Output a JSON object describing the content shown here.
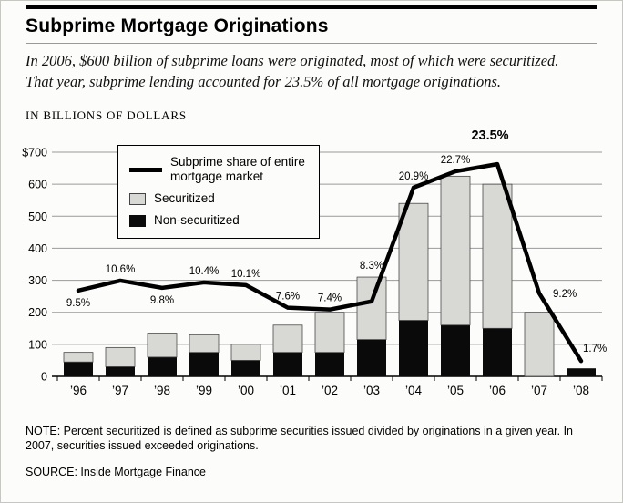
{
  "header": {
    "title": "Subprime Mortgage Originations",
    "intro": "In 2006, $600 billion of subprime loans were originated, most of which were securitized. That year, subprime lending accounted for 23.5% of all mortgage originations.",
    "units_label": "IN BILLIONS OF DOLLARS"
  },
  "legend": {
    "line_label": "Subprime share of entire mortgage market",
    "securitized_label": "Securitized",
    "non_securitized_label": "Non-securitized"
  },
  "chart_data": {
    "type": "bar+line",
    "title": "Subprime Mortgage Originations",
    "ylabel": "IN BILLIONS OF DOLLARS",
    "categories": [
      "’96",
      "’97",
      "’98",
      "’99",
      "’00",
      "’01",
      "’02",
      "’03",
      "’04",
      "’05",
      "’06",
      "’07",
      "’08"
    ],
    "series": [
      {
        "name": "Securitized",
        "color": "#d8d8d4",
        "values": [
          30,
          60,
          75,
          55,
          50,
          85,
          125,
          195,
          365,
          465,
          450,
          200,
          0
        ]
      },
      {
        "name": "Non-securitized",
        "color": "#0a0a0a",
        "values": [
          45,
          30,
          60,
          75,
          50,
          75,
          75,
          115,
          175,
          160,
          150,
          0,
          25
        ]
      }
    ],
    "line": {
      "name": "Subprime share of entire mortgage market",
      "unit": "%",
      "values": [
        9.5,
        10.6,
        9.8,
        10.4,
        10.1,
        7.6,
        7.4,
        8.3,
        20.9,
        22.7,
        23.5,
        9.2,
        1.7
      ],
      "scale_to_left_axis": 28.2,
      "label_positions": [
        "below",
        "above",
        "below",
        "above",
        "above",
        "above",
        "above",
        "above",
        "above",
        "above",
        "above-bold",
        "right",
        "above-right"
      ]
    },
    "ylim": [
      0,
      700
    ],
    "ytick_step": 100,
    "ytick_labels": [
      "0",
      "100",
      "200",
      "300",
      "400",
      "500",
      "600",
      "$700"
    ],
    "grid": true,
    "legend_position": "top-left"
  },
  "footer": {
    "note": "NOTE: Percent securitized is defined as subprime securities issued divided by originations in a given year. In 2007, securities issued exceeded originations.",
    "source": "SOURCE: Inside Mortgage Finance"
  }
}
